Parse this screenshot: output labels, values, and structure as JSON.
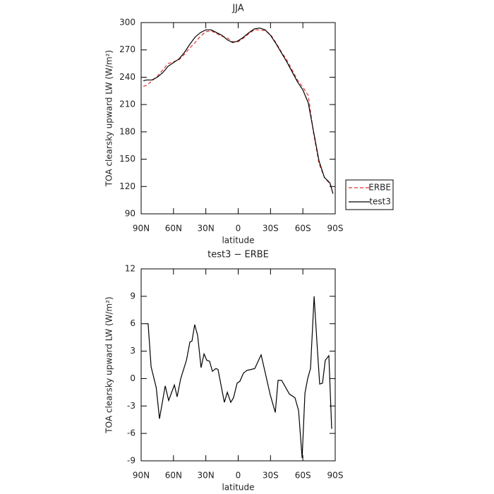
{
  "chart_data": [
    {
      "type": "line",
      "title": "JJA",
      "x_label": "latitude",
      "y_label": "TOA clearsky upward LW (W/m²)",
      "x": [
        88,
        85,
        80,
        75,
        70,
        65,
        60,
        55,
        50,
        45,
        40,
        35,
        30,
        25,
        20,
        15,
        10,
        5,
        0,
        -5,
        -10,
        -15,
        -20,
        -25,
        -30,
        -35,
        -40,
        -45,
        -50,
        -55,
        -60,
        -65,
        -70,
        -75,
        -80,
        -85,
        -88
      ],
      "series": [
        {
          "name": "ERBE",
          "color": "#e03030",
          "dash": true,
          "values": [
            230,
            231,
            236,
            241,
            248,
            255,
            257,
            259,
            265,
            272,
            278,
            285,
            290,
            291,
            288,
            285,
            283,
            279,
            279,
            283,
            288,
            292,
            292,
            291,
            287,
            278,
            268,
            259,
            248,
            237,
            229,
            220,
            178,
            145,
            130,
            123,
            117
          ]
        },
        {
          "name": "test3",
          "color": "#000000",
          "dash": false,
          "values": [
            236,
            237,
            237,
            240,
            245,
            252,
            256,
            260,
            267,
            276,
            284,
            289,
            292,
            292,
            289,
            286,
            281,
            278,
            280,
            284,
            289,
            293,
            294,
            292,
            286,
            277,
            267,
            257,
            246,
            235,
            226,
            212,
            180,
            148,
            130,
            124,
            112
          ]
        }
      ],
      "xlim": [
        90,
        -90
      ],
      "xticks": [
        {
          "value": 90,
          "label": "90N"
        },
        {
          "value": 60,
          "label": "60N"
        },
        {
          "value": 30,
          "label": "30N"
        },
        0,
        {
          "value": -30,
          "label": "30S"
        },
        {
          "value": -60,
          "label": "60S"
        },
        {
          "value": -90,
          "label": "90S"
        }
      ],
      "ylim": [
        90,
        300
      ],
      "yticks": [
        90,
        120,
        150,
        180,
        210,
        240,
        270,
        300
      ],
      "legend": "right"
    },
    {
      "type": "line",
      "title": "test3 − ERBE",
      "x_label": "latitude",
      "y_label": "TOA clearsky upward LW (W/m²)",
      "x": [
        85.4,
        83.5,
        80.8,
        76,
        73,
        67.7,
        64.5,
        59.2,
        56.6,
        53.3,
        48,
        44.8,
        42.9,
        40.3,
        37.6,
        34.4,
        31.7,
        29.1,
        26.5,
        23.9,
        20.6,
        18.7,
        12.8,
        10.1,
        6.9,
        4.3,
        1,
        -1.6,
        -4.9,
        -8.2,
        -12.1,
        -15.4,
        -21.3,
        -25.9,
        -29.8,
        -34.4,
        -37,
        -40.3,
        -47.5,
        -52.7,
        -56,
        -59.3,
        -61.9,
        -64.5,
        -67.1,
        -70.4,
        -73.6,
        -75.6,
        -78.2,
        -80.8,
        -84.1,
        -86.7
      ],
      "values": [
        6,
        6,
        1.3,
        -1,
        -4.4,
        -0.8,
        -2.4,
        -0.7,
        -2,
        0,
        2,
        4,
        4.1,
        5.9,
        4.7,
        1.2,
        2.7,
        2,
        1.9,
        0.8,
        1.1,
        1,
        -2.6,
        -1.5,
        -2.6,
        -2.1,
        -0.5,
        -0.3,
        0.6,
        0.9,
        1,
        1.1,
        2.6,
        0.2,
        -1.8,
        -3.7,
        -0.2,
        -0.2,
        -1.7,
        -2.1,
        -3.5,
        -8.7,
        -1.6,
        0,
        1.1,
        9,
        3,
        -0.6,
        -0.5,
        2,
        2.5,
        -5.5
      ],
      "color": "#000000",
      "xlim": [
        90,
        -90
      ],
      "xticks": [
        {
          "value": 90,
          "label": "90N"
        },
        {
          "value": 60,
          "label": "60N"
        },
        {
          "value": 30,
          "label": "30N"
        },
        0,
        {
          "value": -30,
          "label": "30S"
        },
        {
          "value": -60,
          "label": "60S"
        },
        {
          "value": -90,
          "label": "90S"
        }
      ],
      "ylim": [
        -9,
        12
      ],
      "yticks": [
        -9,
        -6,
        -3,
        0,
        3,
        6,
        9,
        12
      ]
    }
  ]
}
